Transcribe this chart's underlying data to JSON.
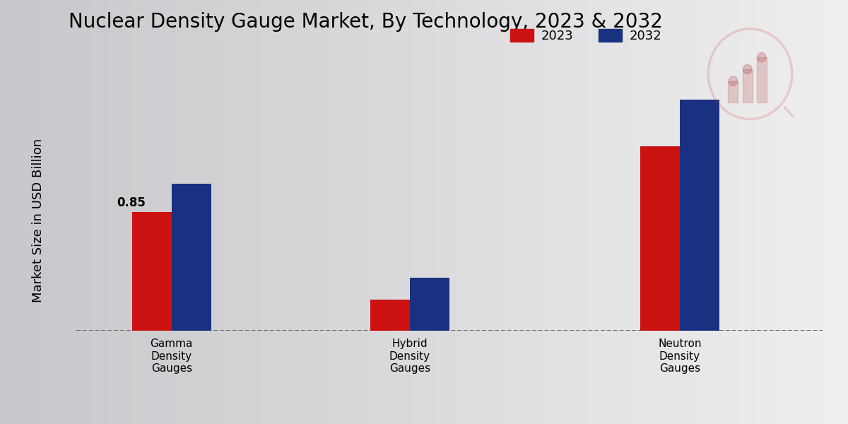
{
  "title": "Nuclear Density Gauge Market, By Technology, 2023 & 2032",
  "ylabel": "Market Size in USD Billion",
  "categories": [
    "Gamma\nDensity\nGauges",
    "Hybrid\nDensity\nGauges",
    "Neutron\nDensity\nGauges"
  ],
  "values_2023": [
    0.85,
    0.22,
    1.32
  ],
  "values_2032": [
    1.05,
    0.38,
    1.65
  ],
  "color_2023": "#cc1111",
  "color_2032": "#1a3080",
  "bar_width": 0.25,
  "annotate_value": "0.85",
  "legend_labels": [
    "2023",
    "2032"
  ],
  "bg_left_color": "#d0d0d0",
  "bg_right_color": "#f0f0f0",
  "dashed_line_y": 0.0,
  "title_fontsize": 20,
  "axis_label_fontsize": 13,
  "tick_fontsize": 11,
  "legend_fontsize": 13,
  "ylim": [
    0,
    2.0
  ],
  "bottom_bar_color": "#cc1111",
  "x_positions": [
    0.5,
    2.0,
    3.7
  ],
  "xlim": [
    -0.1,
    4.6
  ]
}
